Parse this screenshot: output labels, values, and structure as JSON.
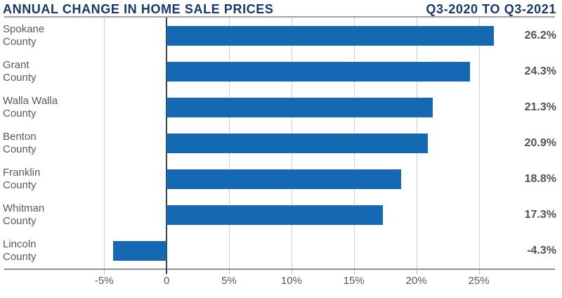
{
  "header": {
    "title": "ANNUAL CHANGE IN HOME SALE PRICES",
    "period": "Q3-2020 TO Q3-2021"
  },
  "colors": {
    "bar": "#1569b3",
    "title_navy": "#17386a",
    "label_gray": "#58595b",
    "grid_light": "#cdced0",
    "zero_line": "#414245",
    "axis_gray": "#8f9194"
  },
  "chart_data": {
    "type": "bar",
    "orientation": "horizontal",
    "title": "ANNUAL CHANGE IN HOME SALE PRICES",
    "subtitle": "Q3-2020 TO Q3-2021",
    "categories": [
      "Spokane County",
      "Grant County",
      "Walla Walla County",
      "Benton County",
      "Franklin County",
      "Whitman County",
      "Lincoln County"
    ],
    "values": [
      26.2,
      24.3,
      21.3,
      20.9,
      18.8,
      17.3,
      -4.3
    ],
    "value_labels": [
      "26.2%",
      "24.3%",
      "21.3%",
      "20.9%",
      "18.8%",
      "17.3%",
      "-4.3%"
    ],
    "xlabel": "",
    "ylabel": "",
    "x_axis": {
      "ticks": [
        -5,
        0,
        5,
        10,
        15,
        20,
        25
      ],
      "tick_labels": [
        "-5%",
        "0",
        "5%",
        "10%",
        "15%",
        "20%",
        "25%"
      ],
      "xlim": [
        -13,
        31.1
      ],
      "grid": true
    },
    "legend": "none"
  }
}
